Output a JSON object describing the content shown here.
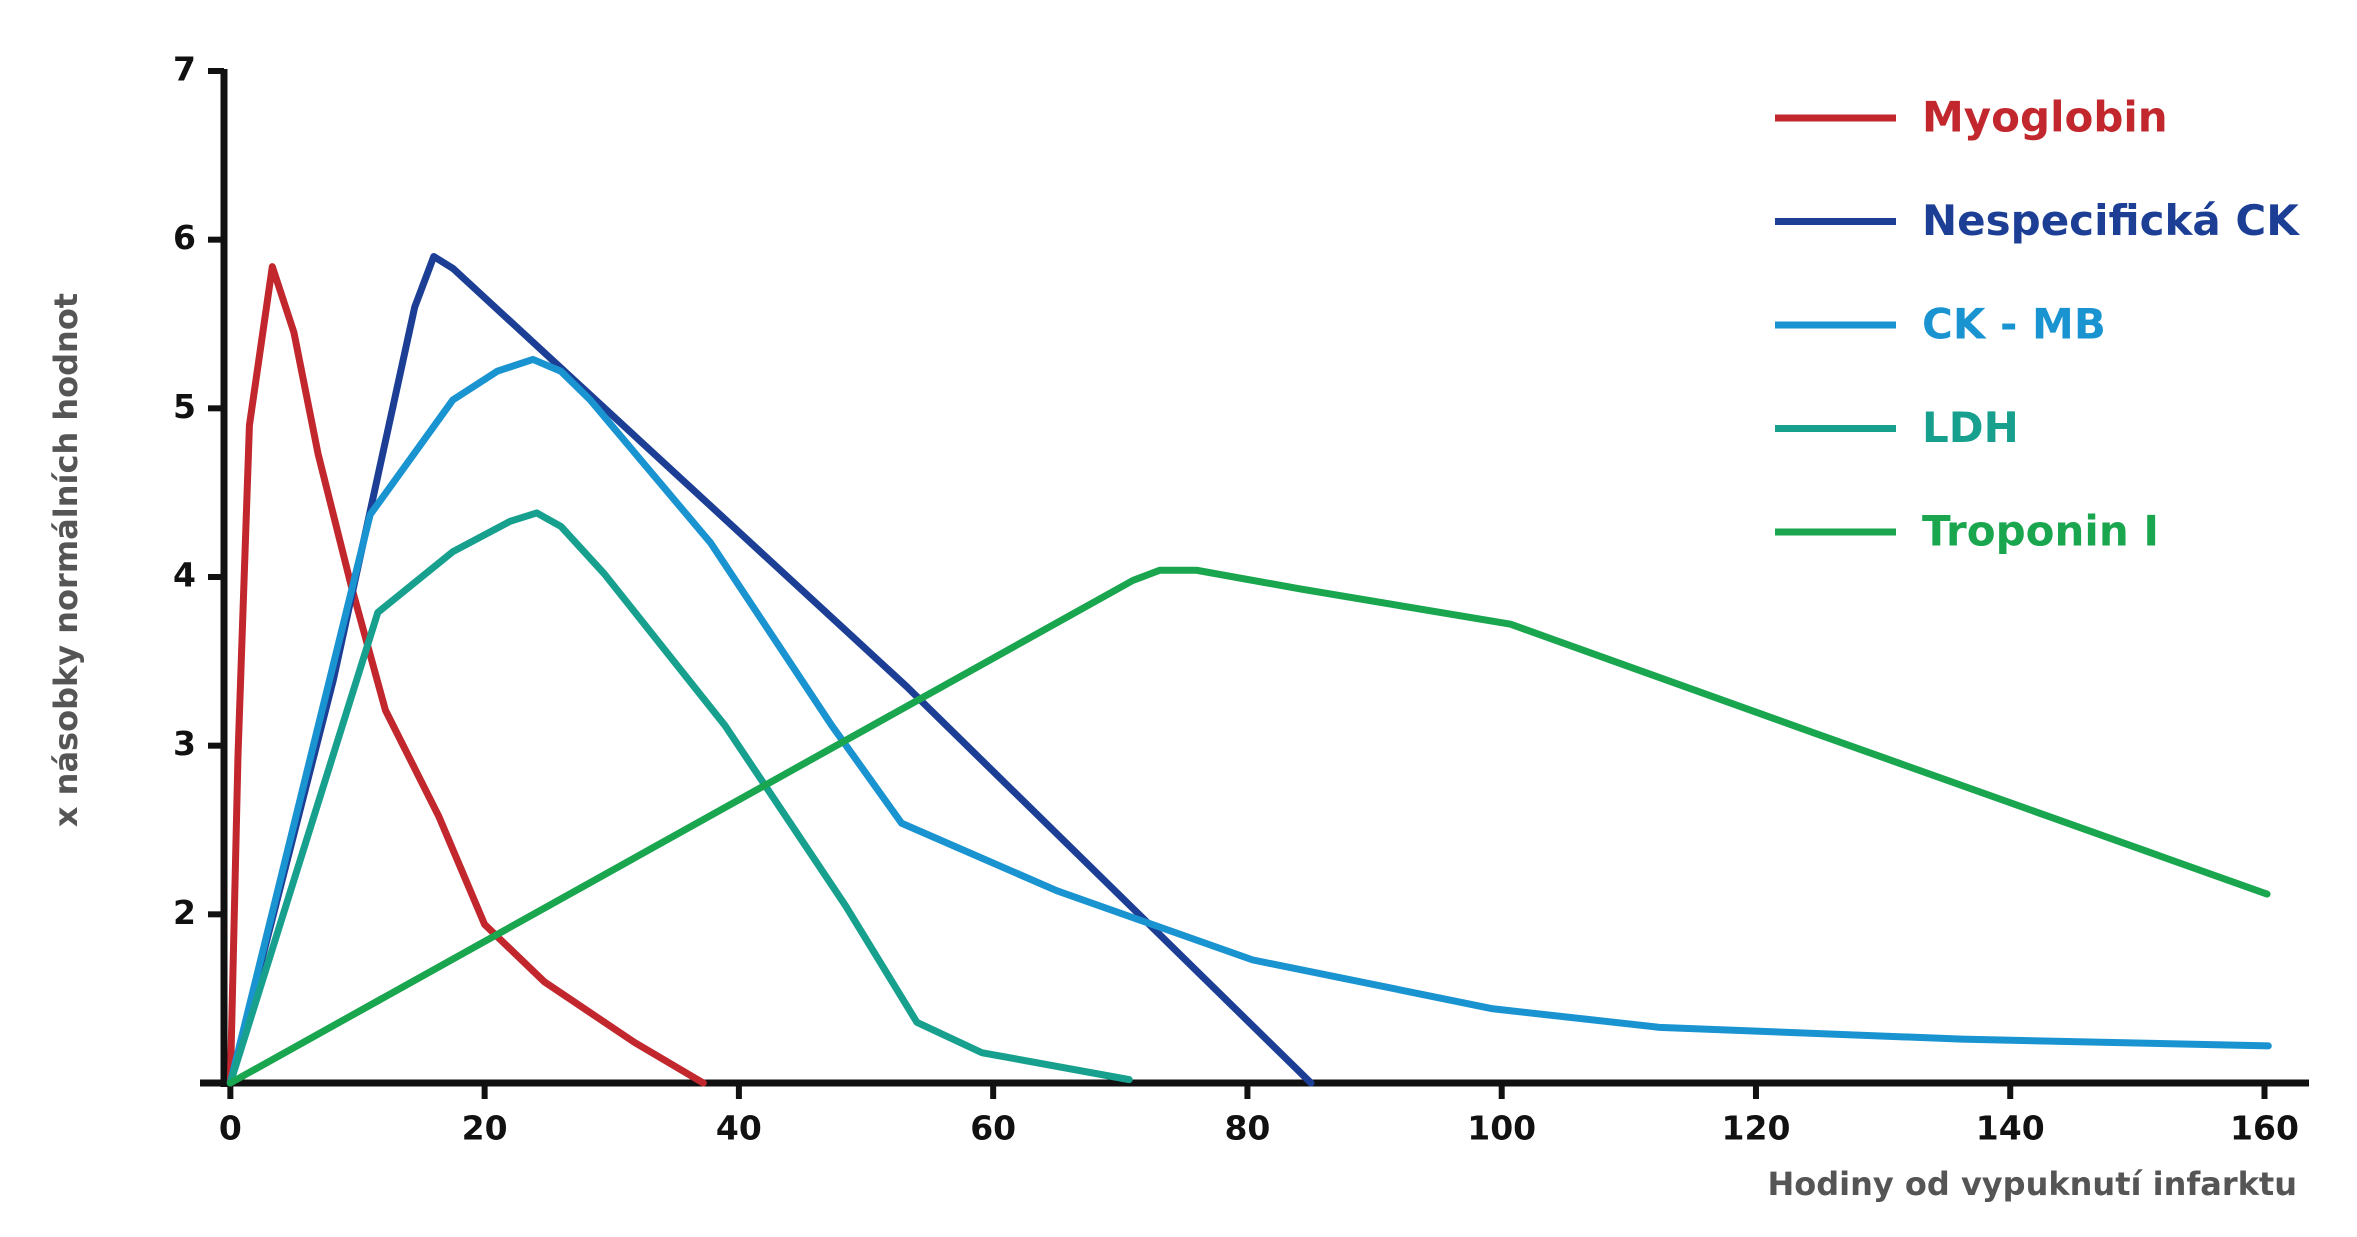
{
  "chart_data": {
    "type": "line",
    "xlabel": "Hodiny od  vypuknutí infarktu",
    "ylabel": "x násobky normálních hodnot",
    "xlim": [
      -0.5,
      163.5
    ],
    "ylim": [
      1,
      7
    ],
    "xticks": [
      0,
      20,
      40,
      60,
      80,
      100,
      120,
      140,
      160
    ],
    "yticks": [
      2,
      3,
      4,
      5,
      6,
      7
    ],
    "legend": "upper right",
    "series": [
      {
        "name": "Myoglobin",
        "color": "#c1272d",
        "x": [
          0,
          0.6,
          1.5,
          3.3,
          5,
          6.9,
          9.5,
          12.2,
          16.4,
          20,
          24.7,
          31.8,
          37.2
        ],
        "values": [
          1,
          2.94,
          4.9,
          5.84,
          5.45,
          4.73,
          3.95,
          3.21,
          2.58,
          1.94,
          1.6,
          1.24,
          1
        ]
      },
      {
        "name": "Nespecifická CK",
        "color": "#1c3f95",
        "x": [
          0,
          8.1,
          14.5,
          16,
          17.5,
          53.2,
          85
        ],
        "values": [
          1,
          3.39,
          5.6,
          5.9,
          5.83,
          3.35,
          1
        ]
      },
      {
        "name": "CK - MB",
        "color": "#1a93d1",
        "x": [
          0,
          11,
          17.5,
          21,
          23.8,
          26,
          28.3,
          37.8,
          47.3,
          52.8,
          65,
          80.4,
          99.3,
          112.4,
          136.2,
          160.3
        ],
        "values": [
          1,
          4.37,
          5.05,
          5.22,
          5.29,
          5.22,
          5.05,
          4.2,
          3.12,
          2.54,
          2.14,
          1.73,
          1.44,
          1.33,
          1.26,
          1.22
        ]
      },
      {
        "name": "LDH",
        "color": "#17a08e",
        "x": [
          0,
          11.6,
          17.5,
          22,
          24.1,
          26,
          29.4,
          38.9,
          48.4,
          54,
          59.1,
          70.7
        ],
        "values": [
          1,
          3.79,
          4.15,
          4.33,
          4.38,
          4.3,
          4.02,
          3.12,
          2.05,
          1.36,
          1.18,
          1.02
        ]
      },
      {
        "name": "Troponin I",
        "color": "#19a64f",
        "x": [
          0,
          71,
          73.1,
          76,
          84.1,
          100.7,
          124.4,
          160.2
        ],
        "values": [
          1,
          3.98,
          4.04,
          4.04,
          3.93,
          3.72,
          3.08,
          2.12
        ]
      }
    ]
  }
}
